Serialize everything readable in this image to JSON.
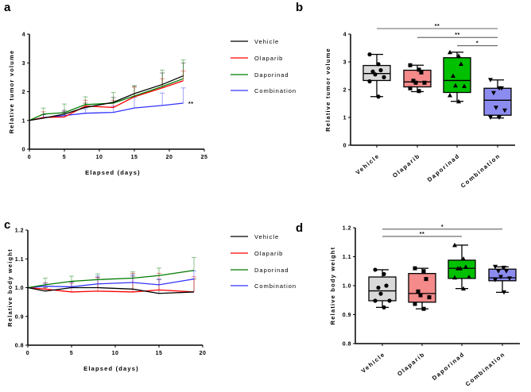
{
  "colors": {
    "Vehicle": "#000000",
    "Olaparib": "#ff0000",
    "Daporinad": "#007a00",
    "Combination": "#3333ff"
  },
  "box_fills": {
    "Vehicle": "#d9d9d9",
    "Olaparib": "#f48a8a",
    "Daporinad": "#00c000",
    "Combination": "#8c8cf0"
  },
  "markers": {
    "Vehicle": "circle",
    "Olaparib": "square",
    "Daporinad": "triangle-up",
    "Combination": "triangle-down"
  },
  "chart_data": [
    {
      "panel": "a",
      "type": "line",
      "xlabel": "Elapsed (days)",
      "ylabel": "Relative tumor volume",
      "xlim": [
        0,
        25
      ],
      "ylim": [
        0,
        4
      ],
      "xticks": [
        "0",
        "5",
        "10",
        "15",
        "20",
        "25"
      ],
      "yticks": [
        "0",
        "1",
        "2",
        "3",
        "4"
      ],
      "legend": "right",
      "annotation": "**",
      "x": [
        0,
        2,
        5,
        8,
        12,
        15,
        19,
        22
      ],
      "series": [
        {
          "name": "Vehicle",
          "values": [
            1,
            1.08,
            1.22,
            1.45,
            1.63,
            1.93,
            2.25,
            2.55
          ],
          "err_upper": [
            1,
            1.2,
            1.35,
            1.6,
            1.8,
            2.2,
            2.65,
            3.0
          ]
        },
        {
          "name": "Olaparib",
          "values": [
            1,
            1.1,
            1.12,
            1.5,
            1.45,
            1.82,
            2.13,
            2.38
          ],
          "err_upper": [
            1,
            1.3,
            1.3,
            1.7,
            1.7,
            2.15,
            2.45,
            2.72
          ]
        },
        {
          "name": "Daporinad",
          "values": [
            1,
            1.22,
            1.27,
            1.55,
            1.6,
            1.85,
            2.18,
            2.45
          ],
          "err_upper": [
            1,
            1.43,
            1.57,
            1.82,
            1.97,
            2.2,
            2.75,
            3.1
          ]
        },
        {
          "name": "Combination",
          "values": [
            1,
            1.1,
            1.17,
            1.25,
            1.28,
            1.43,
            1.52,
            1.6
          ],
          "err_upper": [
            1,
            1.2,
            1.3,
            1.4,
            1.5,
            1.8,
            1.95,
            2.13
          ]
        }
      ]
    },
    {
      "panel": "b",
      "type": "box",
      "ylabel": "Relative tumor volume",
      "ylim": [
        0,
        4
      ],
      "yticks": [
        "0",
        "1",
        "2",
        "3",
        "4"
      ],
      "categories": [
        "Vehicle",
        "Olaparib",
        "Daporinad",
        "Combination"
      ],
      "boxes": [
        {
          "min": 1.75,
          "q1": 2.33,
          "median": 2.58,
          "q3": 2.87,
          "max": 3.27,
          "points": [
            3.27,
            2.92,
            2.7,
            2.65,
            2.55,
            2.45,
            2.3,
            1.75
          ]
        },
        {
          "min": 1.93,
          "q1": 2.1,
          "median": 2.28,
          "q3": 2.7,
          "max": 2.88,
          "points": [
            2.88,
            2.72,
            2.62,
            2.32,
            2.25,
            2.25,
            2.05,
            1.95
          ]
        },
        {
          "min": 1.58,
          "q1": 1.9,
          "median": 2.33,
          "q3": 3.15,
          "max": 3.35,
          "points": [
            3.35,
            3.22,
            2.93,
            2.5,
            2.15,
            2.13,
            1.8,
            1.58
          ]
        },
        {
          "min": 0.98,
          "q1": 1.08,
          "median": 1.62,
          "q3": 2.05,
          "max": 2.35,
          "points": [
            2.35,
            2.05,
            2.05,
            1.88,
            1.35,
            1.25,
            1.0,
            1.0
          ]
        }
      ],
      "significance": [
        {
          "from": 0,
          "to": 3,
          "y": 4.2,
          "label": "**"
        },
        {
          "from": 1,
          "to": 3,
          "y": 3.88,
          "label": "**"
        },
        {
          "from": 2,
          "to": 3,
          "y": 3.58,
          "label": "*"
        }
      ]
    },
    {
      "panel": "c",
      "type": "line",
      "xlabel": "Elapsed (days)",
      "ylabel": "Relative body weight",
      "xlim": [
        0,
        20
      ],
      "ylim": [
        0.8,
        1.2
      ],
      "xticks": [
        "0",
        "5",
        "10",
        "15",
        "20"
      ],
      "yticks": [
        "0.8",
        "0.9",
        "1.0",
        "1.1",
        "1.2"
      ],
      "legend": "right",
      "x": [
        0,
        2,
        5,
        8,
        12,
        15,
        19
      ],
      "series": [
        {
          "name": "Vehicle",
          "values": [
            1,
            0.988,
            1.0,
            1.0,
            0.995,
            0.98,
            0.985
          ],
          "err_upper": [
            1,
            1.0,
            1.02,
            1.035,
            1.04,
            1.028,
            1.03
          ]
        },
        {
          "name": "Olaparib",
          "values": [
            1,
            0.995,
            0.985,
            0.988,
            0.985,
            0.992,
            0.985
          ],
          "err_upper": [
            1,
            1.017,
            1.015,
            1.035,
            1.05,
            1.05,
            1.038
          ]
        },
        {
          "name": "Daporinad",
          "values": [
            1,
            1.01,
            1.022,
            1.028,
            1.033,
            1.042,
            1.06
          ],
          "err_upper": [
            1,
            1.033,
            1.04,
            1.048,
            1.055,
            1.068,
            1.105
          ]
        },
        {
          "name": "Combination",
          "values": [
            1,
            1.005,
            1.003,
            1.013,
            1.018,
            1.01,
            1.03
          ],
          "err_upper": [
            1,
            1.015,
            1.02,
            1.04,
            1.045,
            1.03,
            1.058
          ]
        }
      ]
    },
    {
      "panel": "d",
      "type": "box",
      "ylabel": "Relative body weight",
      "ylim": [
        0.8,
        1.2
      ],
      "yticks": [
        "0.8",
        "0.9",
        "1.0",
        "1.1",
        "1.2"
      ],
      "categories": [
        "Vehicle",
        "Olaparib",
        "Daporinad",
        "Combination"
      ],
      "boxes": [
        {
          "min": 0.925,
          "q1": 0.948,
          "median": 0.982,
          "q3": 1.03,
          "max": 1.055,
          "points": [
            1.055,
            1.04,
            1.0,
            0.993,
            0.972,
            0.948,
            0.948,
            0.925
          ]
        },
        {
          "min": 0.92,
          "q1": 0.943,
          "median": 0.973,
          "q3": 1.042,
          "max": 1.06,
          "points": [
            1.06,
            1.05,
            1.023,
            0.98,
            0.967,
            0.96,
            0.937,
            0.92
          ]
        },
        {
          "min": 0.99,
          "q1": 1.025,
          "median": 1.06,
          "q3": 1.088,
          "max": 1.14,
          "points": [
            1.14,
            1.093,
            1.065,
            1.06,
            1.06,
            1.03,
            1.028,
            0.99
          ]
        },
        {
          "min": 0.977,
          "q1": 1.017,
          "median": 1.027,
          "q3": 1.057,
          "max": 1.065,
          "points": [
            1.065,
            1.062,
            1.05,
            1.05,
            1.03,
            1.025,
            1.02,
            0.977
          ]
        }
      ],
      "significance": [
        {
          "from": 0,
          "to": 3,
          "y": 1.195,
          "label": "*"
        },
        {
          "from": 0,
          "to": 2,
          "y": 1.17,
          "label": "**"
        }
      ]
    }
  ]
}
